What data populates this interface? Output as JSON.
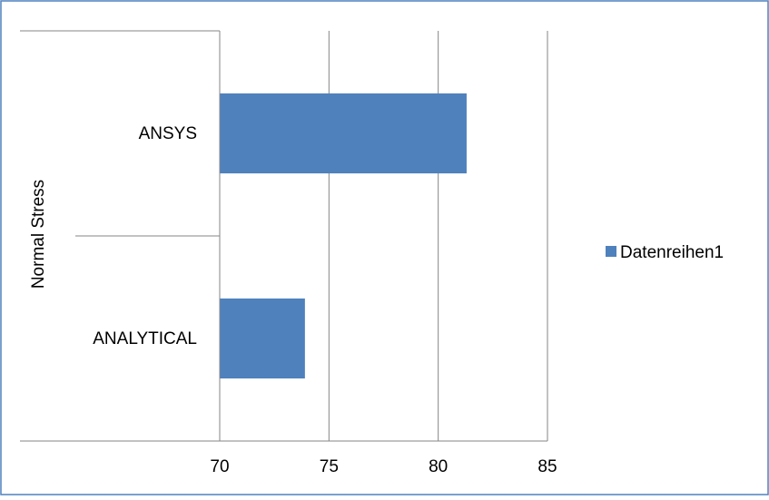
{
  "chart_data": {
    "type": "bar",
    "orientation": "horizontal",
    "categories": [
      "ANSYS",
      "ANALYTICAL"
    ],
    "series": [
      {
        "name": "Datenreihen1",
        "values": [
          81.3,
          73.9
        ]
      }
    ],
    "xlabel": "",
    "ylabel": "Normal  Stress",
    "xlim": [
      70,
      85
    ],
    "xticks": [
      "70",
      "75",
      "80",
      "85"
    ],
    "grid": "vertical",
    "legend_position": "right",
    "colors": {
      "bar": "#4f81bd",
      "frame": "#4f81bd",
      "grid": "#868686"
    }
  }
}
